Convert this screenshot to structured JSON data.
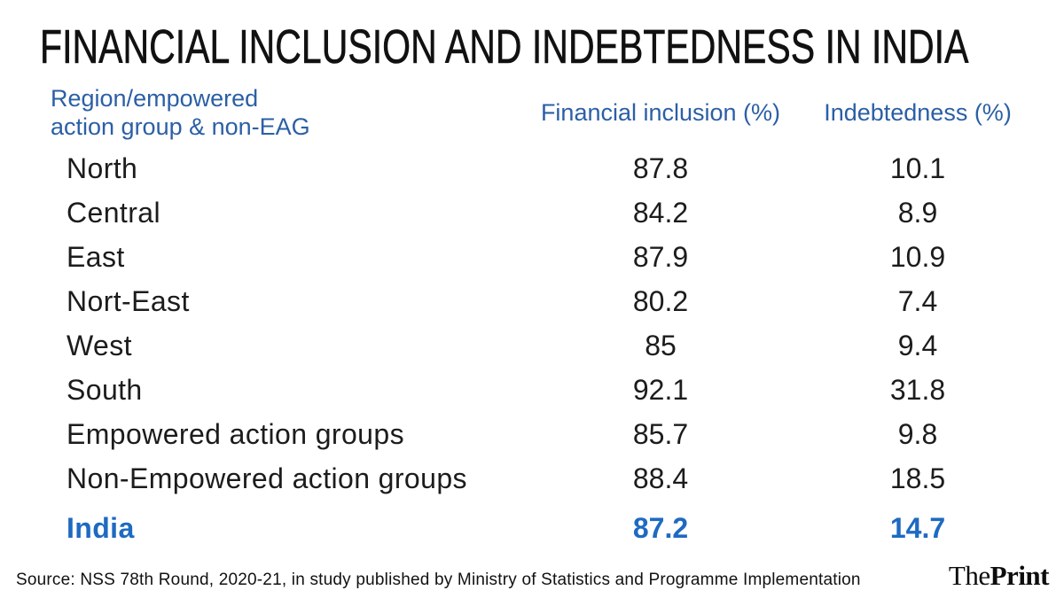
{
  "title": "FINANCIAL INCLUSION AND INDEBTEDNESS IN INDIA",
  "header": {
    "region_line1": "Region/empowered",
    "region_line2": "action group & non-EAG",
    "col_financial": "Financial inclusion (%)",
    "col_indebtedness": "Indebtedness (%)"
  },
  "rows": [
    {
      "label": "North",
      "fi": "87.8",
      "ind": "10.1"
    },
    {
      "label": "Central",
      "fi": "84.2",
      "ind": "8.9"
    },
    {
      "label": "East",
      "fi": "87.9",
      "ind": "10.9"
    },
    {
      "label": "Nort-East",
      "fi": "80.2",
      "ind": "7.4"
    },
    {
      "label": "West",
      "fi": "85",
      "ind": "9.4"
    },
    {
      "label": "South",
      "fi": "92.1",
      "ind": "31.8"
    },
    {
      "label": "Empowered action groups",
      "fi": "85.7",
      "ind": "9.8"
    },
    {
      "label": "Non-Empowered action groups",
      "fi": "88.4",
      "ind": "18.5"
    },
    {
      "label": "India",
      "fi": "87.2",
      "ind": "14.7"
    }
  ],
  "footer": {
    "source": "Source: NSS 78th Round, 2020-21, in study published by Ministry of Statistics and Programme Implementation",
    "brand_the": "The",
    "brand_print": "Print"
  },
  "colors": {
    "header_blue": "#2b5fa5",
    "india_blue": "#1e6ac1",
    "text_black": "#1c1c1c"
  },
  "chart_data": {
    "type": "table",
    "title": "FINANCIAL INCLUSION AND INDEBTEDNESS IN INDIA",
    "columns": [
      "Region/empowered action group & non-EAG",
      "Financial inclusion (%)",
      "Indebtedness (%)"
    ],
    "rows": [
      [
        "North",
        87.8,
        10.1
      ],
      [
        "Central",
        84.2,
        8.9
      ],
      [
        "East",
        87.9,
        10.9
      ],
      [
        "Nort-East",
        80.2,
        7.4
      ],
      [
        "West",
        85,
        9.4
      ],
      [
        "South",
        92.1,
        31.8
      ],
      [
        "Empowered action groups",
        85.7,
        9.8
      ],
      [
        "Non-Empowered action groups",
        88.4,
        18.5
      ],
      [
        "India",
        87.2,
        14.7
      ]
    ],
    "highlight_row": "India",
    "source": "Source: NSS 78th Round, 2020-21, in study published by Ministry of Statistics and Programme Implementation"
  }
}
